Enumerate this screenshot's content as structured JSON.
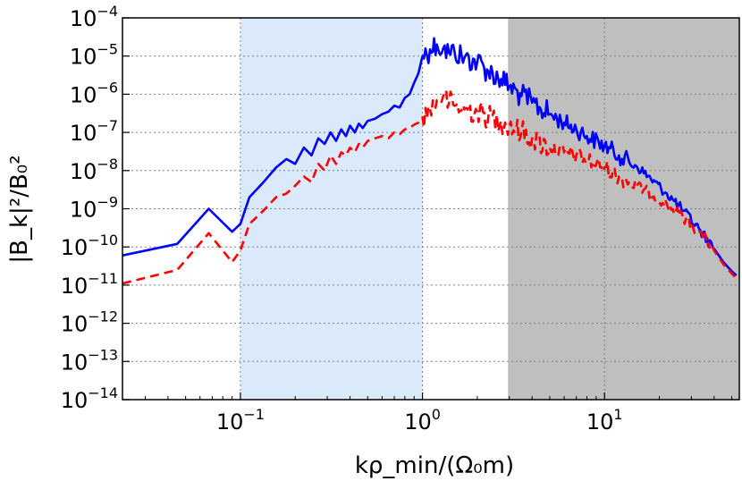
{
  "chart_data": {
    "type": "line",
    "xscale": "log",
    "yscale": "log",
    "xlim": [
      0.0225,
      55
    ],
    "ylim": [
      1e-14,
      0.0001
    ],
    "xlabel": "kρ_min/(Ω₀m)",
    "ylabel": "|B_k|²/B₀²",
    "x_ticks": [
      {
        "value": 0.1,
        "base": "10",
        "exp": "−1"
      },
      {
        "value": 1,
        "base": "10",
        "exp": "0"
      },
      {
        "value": 10,
        "base": "10",
        "exp": "1"
      }
    ],
    "y_ticks": [
      {
        "value": 0.0001,
        "base": "10",
        "exp": "−4"
      },
      {
        "value": 1e-05,
        "base": "10",
        "exp": "−5"
      },
      {
        "value": 1e-06,
        "base": "10",
        "exp": "−6"
      },
      {
        "value": 1e-07,
        "base": "10",
        "exp": "−7"
      },
      {
        "value": 1e-08,
        "base": "10",
        "exp": "−8"
      },
      {
        "value": 1e-09,
        "base": "10",
        "exp": "−9"
      },
      {
        "value": 1e-10,
        "base": "10",
        "exp": "−10"
      },
      {
        "value": 1e-11,
        "base": "10",
        "exp": "−11"
      },
      {
        "value": 1e-12,
        "base": "10",
        "exp": "−12"
      },
      {
        "value": 1e-13,
        "base": "10",
        "exp": "−13"
      },
      {
        "value": 1e-14,
        "base": "10",
        "exp": "−14"
      }
    ],
    "grid": true,
    "shaded_regions": [
      {
        "x_from": 0.1,
        "x_to": 1.0,
        "color": "#dbeafa"
      },
      {
        "x_from": 2.95,
        "x_to": 55,
        "color": "#bfbfbf"
      }
    ],
    "series": [
      {
        "name": "blue solid",
        "color": "#0000ff",
        "style": "solid",
        "points": [
          [
            0.0225,
            6e-11
          ],
          [
            0.045,
            1.2e-10
          ],
          [
            0.067,
            1e-09
          ],
          [
            0.09,
            2.5e-10
          ],
          [
            0.1,
            4e-10
          ],
          [
            0.112,
            2e-09
          ],
          [
            0.134,
            5e-09
          ],
          [
            0.157,
            1.2e-08
          ],
          [
            0.179,
            2e-08
          ],
          [
            0.2,
            1.5e-08
          ],
          [
            0.223,
            4e-08
          ],
          [
            0.246,
            2.5e-08
          ],
          [
            0.268,
            7e-08
          ],
          [
            0.29,
            5e-08
          ],
          [
            0.313,
            1e-07
          ],
          [
            0.335,
            6e-08
          ],
          [
            0.358,
            1.2e-07
          ],
          [
            0.38,
            8e-08
          ],
          [
            0.4,
            1.5e-07
          ],
          [
            0.425,
            1e-07
          ],
          [
            0.447,
            1.7e-07
          ],
          [
            0.47,
            1.3e-07
          ],
          [
            0.5,
            2e-07
          ],
          [
            0.55,
            2.3e-07
          ],
          [
            0.6,
            3e-07
          ],
          [
            0.65,
            3.5e-07
          ],
          [
            0.7,
            5e-07
          ],
          [
            0.75,
            4.5e-07
          ],
          [
            0.8,
            8e-07
          ],
          [
            0.85,
            1e-06
          ],
          [
            0.9,
            2e-06
          ],
          [
            0.95,
            3.5e-06
          ],
          [
            1.0,
            1e-05
          ],
          [
            1.1,
            1.5e-05
          ],
          [
            1.2,
            2e-05
          ],
          [
            1.3,
            1.6e-05
          ],
          [
            1.4,
            1.2e-05
          ],
          [
            1.5,
            1.3e-05
          ],
          [
            1.7,
            9e-06
          ],
          [
            2.0,
            7e-06
          ],
          [
            2.3,
            4e-06
          ],
          [
            2.7,
            2.5e-06
          ],
          [
            3.0,
            1.6e-06
          ],
          [
            3.5,
            9e-07
          ],
          [
            4.0,
            6e-07
          ],
          [
            5.0,
            3e-07
          ],
          [
            6.0,
            1.8e-07
          ],
          [
            7.0,
            1.2e-07
          ],
          [
            8.0,
            8e-08
          ],
          [
            10.0,
            4.5e-08
          ],
          [
            12.0,
            2.5e-08
          ],
          [
            15.0,
            1.3e-08
          ],
          [
            18.0,
            6e-09
          ],
          [
            22.0,
            2.5e-09
          ],
          [
            27.0,
            9e-10
          ],
          [
            33.0,
            3e-10
          ],
          [
            40.0,
            9e-11
          ],
          [
            45.0,
            4e-11
          ],
          [
            50.0,
            2.3e-11
          ],
          [
            53.0,
            1.8e-11
          ]
        ]
      },
      {
        "name": "red dashed",
        "color": "#ff0000",
        "style": "dashed",
        "points": [
          [
            0.0225,
            1.1e-11
          ],
          [
            0.045,
            2.5e-11
          ],
          [
            0.067,
            2.3e-10
          ],
          [
            0.09,
            4e-11
          ],
          [
            0.1,
            8e-11
          ],
          [
            0.112,
            4e-10
          ],
          [
            0.134,
            9e-10
          ],
          [
            0.157,
            2e-09
          ],
          [
            0.179,
            2.5e-09
          ],
          [
            0.2,
            4e-09
          ],
          [
            0.223,
            7e-09
          ],
          [
            0.246,
            5e-09
          ],
          [
            0.268,
            1.5e-08
          ],
          [
            0.29,
            1e-08
          ],
          [
            0.313,
            2.5e-08
          ],
          [
            0.335,
            1.5e-08
          ],
          [
            0.358,
            3e-08
          ],
          [
            0.38,
            2.5e-08
          ],
          [
            0.4,
            4e-08
          ],
          [
            0.425,
            3e-08
          ],
          [
            0.447,
            5e-08
          ],
          [
            0.47,
            4e-08
          ],
          [
            0.5,
            6e-08
          ],
          [
            0.55,
            7e-08
          ],
          [
            0.6,
            8e-08
          ],
          [
            0.65,
            7e-08
          ],
          [
            0.7,
            1e-07
          ],
          [
            0.75,
            9e-08
          ],
          [
            0.8,
            1.2e-07
          ],
          [
            0.85,
            1.3e-07
          ],
          [
            0.9,
            1.6e-07
          ],
          [
            0.95,
            1.8e-07
          ],
          [
            1.0,
            2.5e-07
          ],
          [
            1.1,
            4e-07
          ],
          [
            1.2,
            7e-07
          ],
          [
            1.3,
            9e-07
          ],
          [
            1.4,
            6e-07
          ],
          [
            1.5,
            5e-07
          ],
          [
            1.7,
            4e-07
          ],
          [
            2.0,
            3.5e-07
          ],
          [
            2.3,
            2.5e-07
          ],
          [
            2.7,
            2e-07
          ],
          [
            3.0,
            1.5e-07
          ],
          [
            3.5,
            1e-07
          ],
          [
            4.0,
            7e-08
          ],
          [
            5.0,
            4e-08
          ],
          [
            6.0,
            3e-08
          ],
          [
            7.0,
            2.5e-08
          ],
          [
            8.0,
            1.9e-08
          ],
          [
            10.0,
            1.2e-08
          ],
          [
            12.0,
            7e-09
          ],
          [
            15.0,
            4e-09
          ],
          [
            18.0,
            2.5e-09
          ],
          [
            22.0,
            1.3e-09
          ],
          [
            27.0,
            6e-10
          ],
          [
            33.0,
            2.5e-10
          ],
          [
            40.0,
            8e-11
          ],
          [
            45.0,
            3.5e-11
          ],
          [
            50.0,
            2e-11
          ],
          [
            53.0,
            1.5e-11
          ]
        ]
      }
    ]
  }
}
